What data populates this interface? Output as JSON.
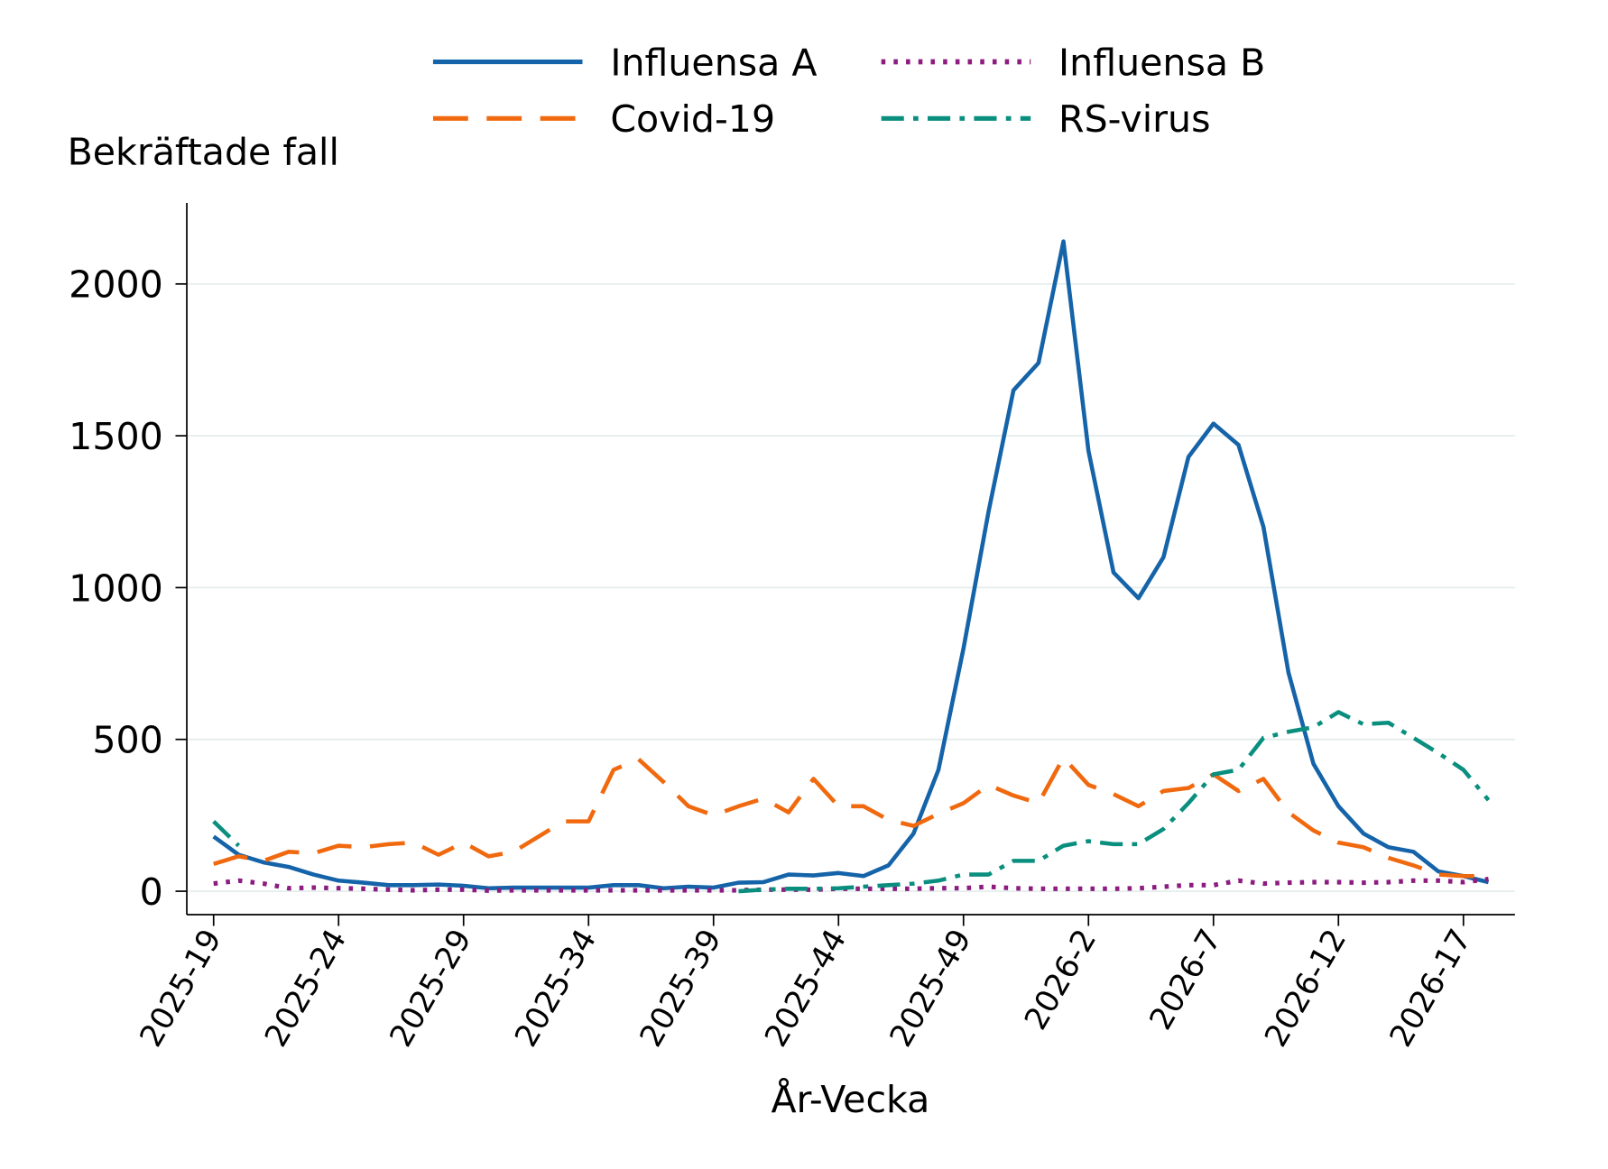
{
  "chart_data": {
    "type": "line",
    "legend_title": null,
    "y_label": "Bekräftade fall",
    "x_label": "År-Vecka",
    "categories": [
      "2025-19",
      null,
      null,
      null,
      null,
      "2025-24",
      null,
      null,
      null,
      null,
      "2025-29",
      null,
      null,
      null,
      null,
      "2025-34",
      null,
      null,
      null,
      null,
      "2025-39",
      null,
      null,
      null,
      null,
      "2025-44",
      null,
      null,
      null,
      null,
      "2025-49",
      null,
      null,
      null,
      null,
      "2026-2",
      null,
      null,
      null,
      null,
      "2026-7",
      null,
      null,
      null,
      null,
      "2026-12",
      null,
      null,
      null,
      null,
      "2026-17",
      null
    ],
    "series": [
      {
        "name": "Influensa A",
        "color": "#1563a8",
        "dash": "solid",
        "values": [
          180,
          120,
          95,
          80,
          55,
          35,
          28,
          20,
          20,
          22,
          18,
          10,
          12,
          12,
          12,
          12,
          20,
          20,
          10,
          15,
          12,
          28,
          30,
          55,
          52,
          60,
          50,
          85,
          190,
          400,
          800,
          1250,
          1650,
          1740,
          2140,
          1450,
          1050,
          965,
          1100,
          1430,
          1540,
          1470,
          1200,
          720,
          420,
          280,
          190,
          145,
          130,
          65,
          50,
          30
        ]
      },
      {
        "name": "Covid-19",
        "color": "#f0690f",
        "dash": "long-dash",
        "values": [
          90,
          115,
          100,
          130,
          125,
          150,
          145,
          155,
          160,
          120,
          160,
          115,
          130,
          180,
          230,
          230,
          400,
          435,
          360,
          280,
          250,
          280,
          305,
          260,
          370,
          280,
          280,
          235,
          215,
          255,
          290,
          350,
          315,
          290,
          440,
          350,
          320,
          280,
          330,
          340,
          385,
          330,
          370,
          260,
          200,
          160,
          145,
          110,
          85,
          55,
          50,
          50
        ]
      },
      {
        "name": "Influensa B",
        "color": "#8c1c80",
        "dash": "dot",
        "values": [
          25,
          35,
          25,
          10,
          12,
          10,
          8,
          5,
          3,
          5,
          5,
          2,
          3,
          3,
          3,
          3,
          3,
          3,
          3,
          3,
          3,
          3,
          5,
          5,
          5,
          8,
          8,
          8,
          8,
          10,
          10,
          15,
          10,
          8,
          8,
          8,
          8,
          10,
          15,
          20,
          20,
          35,
          25,
          28,
          30,
          30,
          28,
          30,
          35,
          35,
          30,
          40
        ]
      },
      {
        "name": "RS-virus",
        "color": "#0a8f7f",
        "dash": "dash-dot",
        "values": [
          230,
          150,
          null,
          null,
          null,
          null,
          null,
          null,
          null,
          null,
          null,
          null,
          null,
          null,
          null,
          null,
          null,
          null,
          null,
          null,
          null,
          0,
          5,
          8,
          8,
          10,
          15,
          20,
          25,
          35,
          55,
          55,
          100,
          100,
          150,
          165,
          155,
          155,
          205,
          290,
          385,
          400,
          505,
          525,
          540,
          590,
          550,
          555,
          505,
          455,
          400,
          300
        ]
      }
    ],
    "ylim": [
      -77,
      2267
    ],
    "yticks": [
      0,
      500,
      1000,
      1500,
      2000
    ],
    "grid": true
  }
}
